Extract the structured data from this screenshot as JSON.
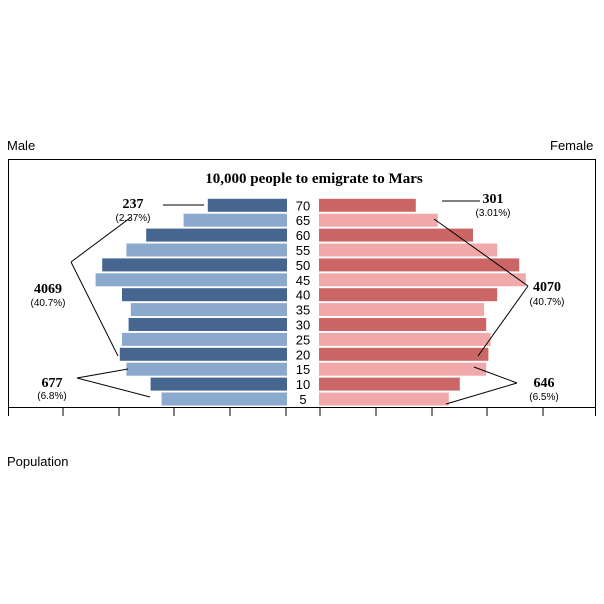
{
  "labels": {
    "male": "Male",
    "female": "Female",
    "population": "Population"
  },
  "chart_data": {
    "type": "bar",
    "title": "10,000 people to emigrate to Mars",
    "orientation": "horizontal",
    "layout": "population-pyramid",
    "categories": [
      "5",
      "10",
      "15",
      "20",
      "25",
      "30",
      "35",
      "40",
      "45",
      "50",
      "55",
      "60",
      "65",
      "70"
    ],
    "series": [
      {
        "name": "Male",
        "values": [
          114,
          124,
          146,
          152,
          150,
          144,
          142,
          150,
          174,
          168,
          146,
          128,
          94,
          72
        ]
      },
      {
        "name": "Female",
        "values": [
          118,
          128,
          152,
          154,
          156,
          152,
          150,
          162,
          188,
          182,
          162,
          140,
          108,
          88
        ]
      }
    ],
    "colors": {
      "male_dark": "#46658f",
      "male_light": "#8aa9cd",
      "female_dark": "#cc6666",
      "female_light": "#f0a8a8"
    },
    "x_axis_ticks": "unlabeled",
    "grid": false,
    "annotations": [
      {
        "value": "237",
        "percent": "(2.37%)",
        "side": "male",
        "group": "70"
      },
      {
        "value": "4069",
        "percent": "(40.7%)",
        "side": "male",
        "group": "20-50"
      },
      {
        "value": "677",
        "percent": "(6.8%)",
        "side": "male",
        "group": "5-10"
      },
      {
        "value": "301",
        "percent": "(3.01%)",
        "side": "female",
        "group": "65-70"
      },
      {
        "value": "4070",
        "percent": "(40.7%)",
        "side": "female",
        "group": "20-50"
      },
      {
        "value": "646",
        "percent": "(6.5%)",
        "side": "female",
        "group": "5-15"
      }
    ]
  }
}
